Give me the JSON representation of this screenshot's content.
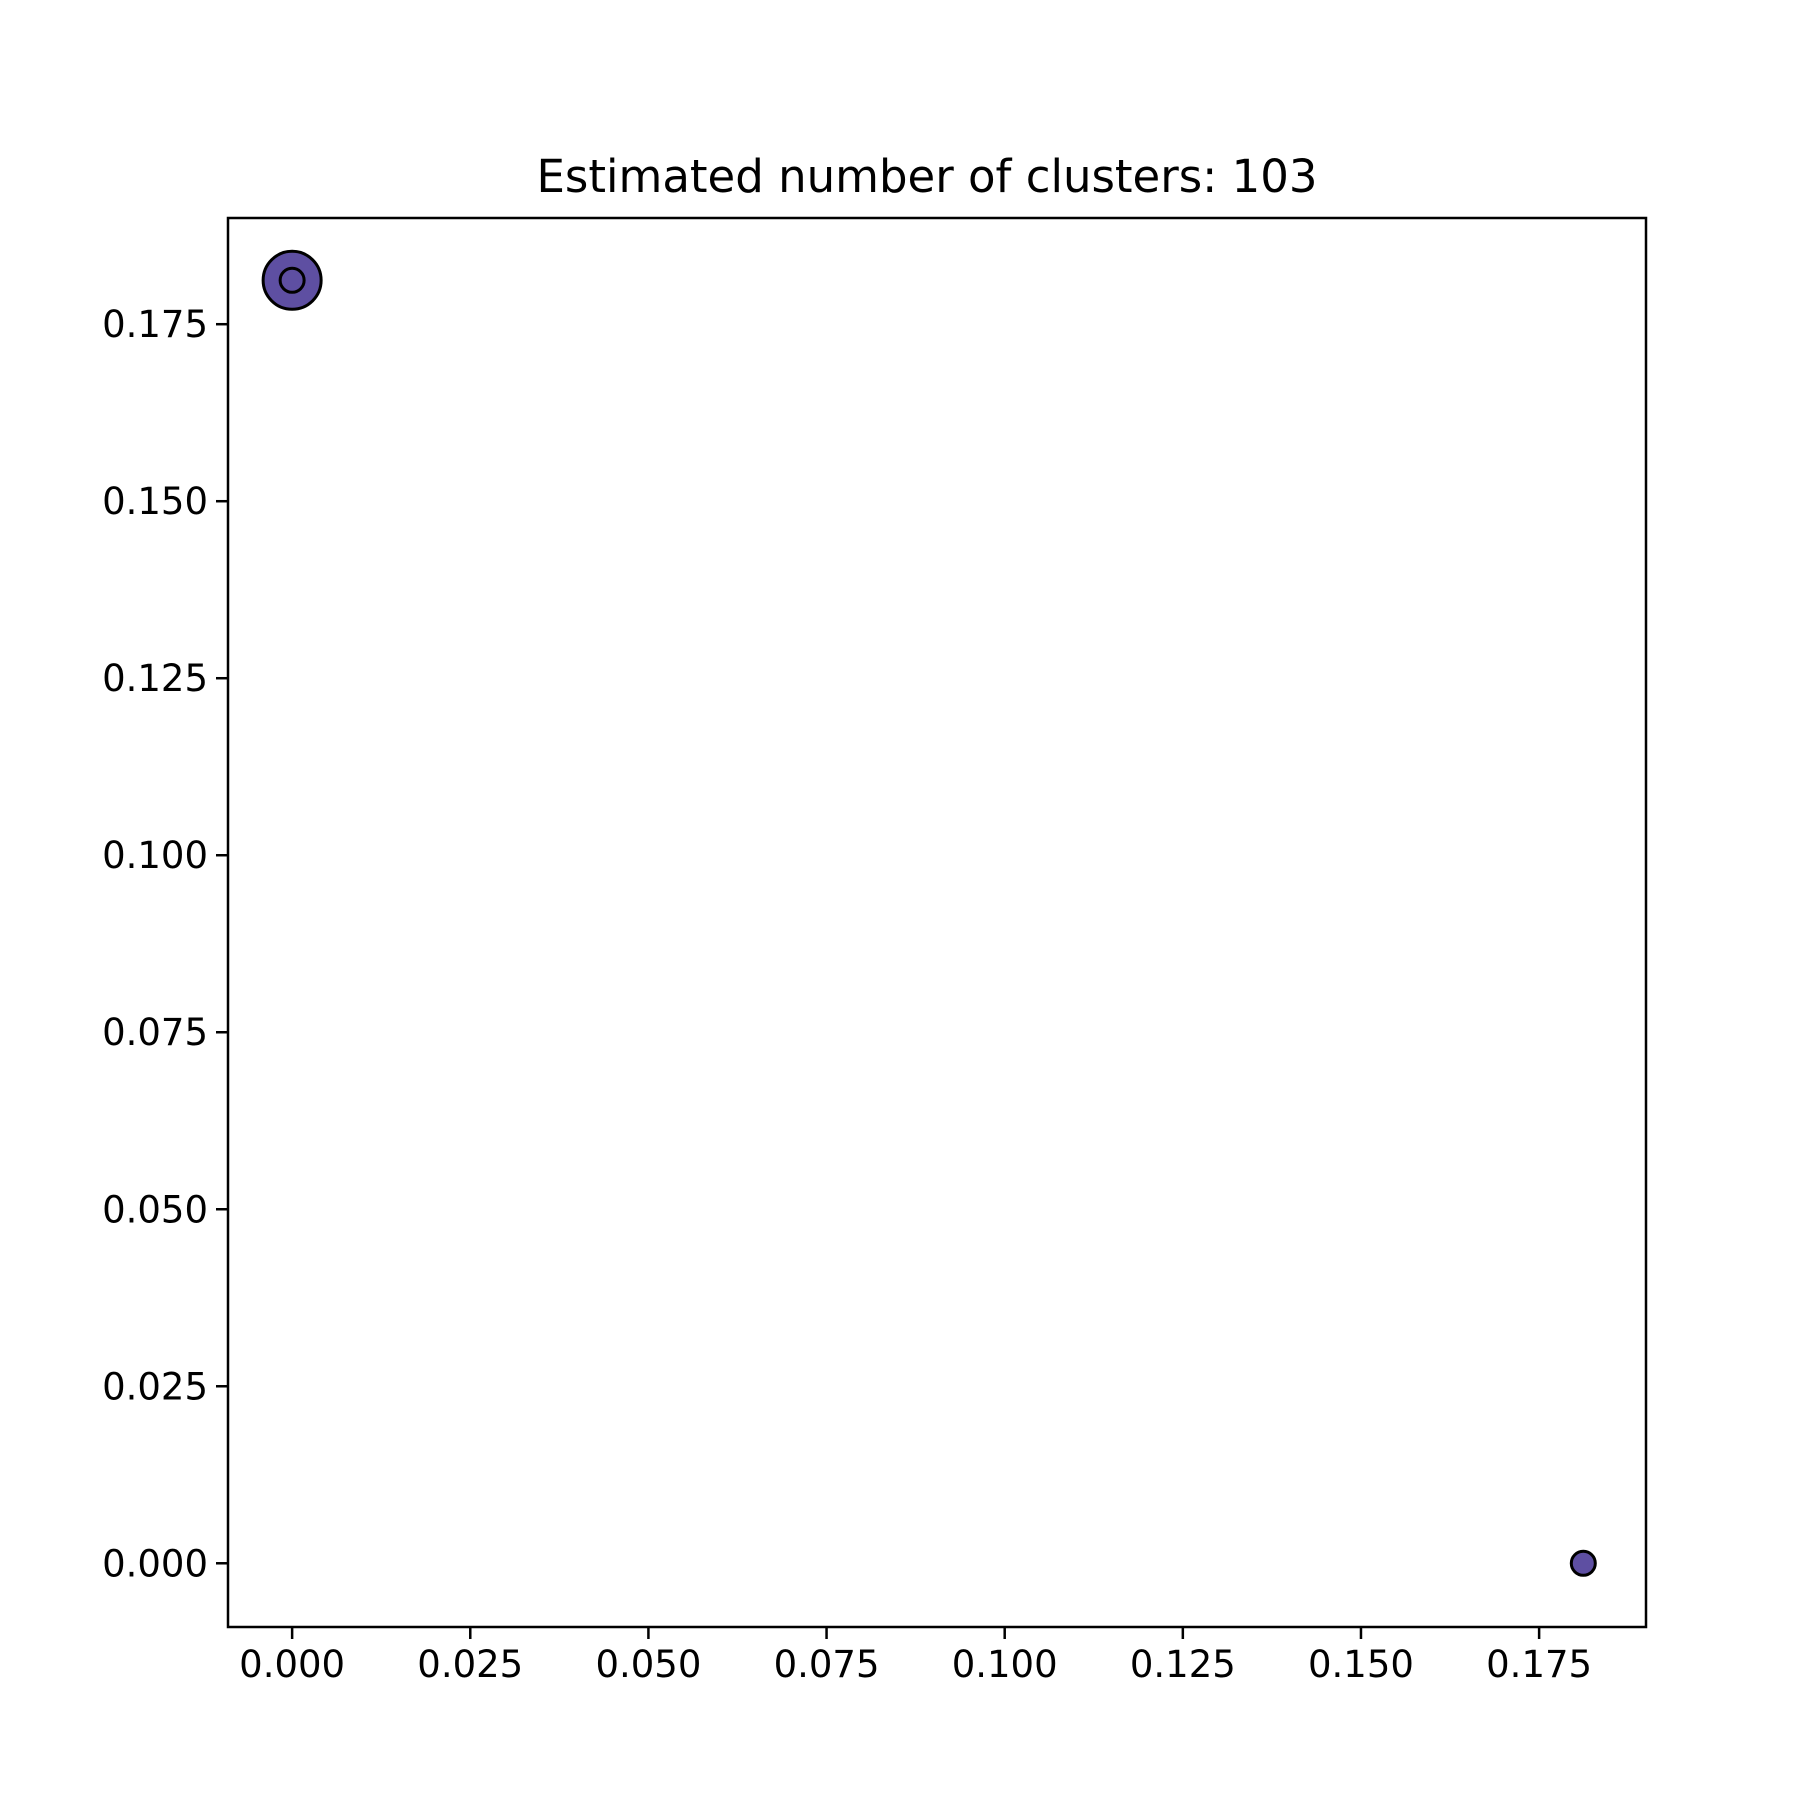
{
  "chart_data": {
    "type": "scatter",
    "title": "Estimated number of clusters: 103",
    "xlabel": "",
    "ylabel": "",
    "xlim": [
      -0.009,
      0.19
    ],
    "ylim": [
      -0.009,
      0.19
    ],
    "x_ticks": [
      0.0,
      0.025,
      0.05,
      0.075,
      0.1,
      0.125,
      0.15,
      0.175
    ],
    "x_tick_labels": [
      "0.000",
      "0.025",
      "0.050",
      "0.075",
      "0.100",
      "0.125",
      "0.150",
      "0.175"
    ],
    "y_ticks": [
      0.0,
      0.025,
      0.05,
      0.075,
      0.1,
      0.125,
      0.15,
      0.175
    ],
    "y_tick_labels": [
      "0.000",
      "0.025",
      "0.050",
      "0.075",
      "0.100",
      "0.125",
      "0.150",
      "0.175"
    ],
    "grid": false,
    "legend": "none",
    "marker_color": "#5e4fa2",
    "edge_color": "#000000",
    "points": [
      {
        "x": 0.0,
        "y": 0.1812,
        "role": "core"
      },
      {
        "x": 0.0,
        "y": 0.1812,
        "role": "non-core"
      },
      {
        "x": 0.1812,
        "y": 0.0,
        "role": "non-core"
      }
    ]
  }
}
